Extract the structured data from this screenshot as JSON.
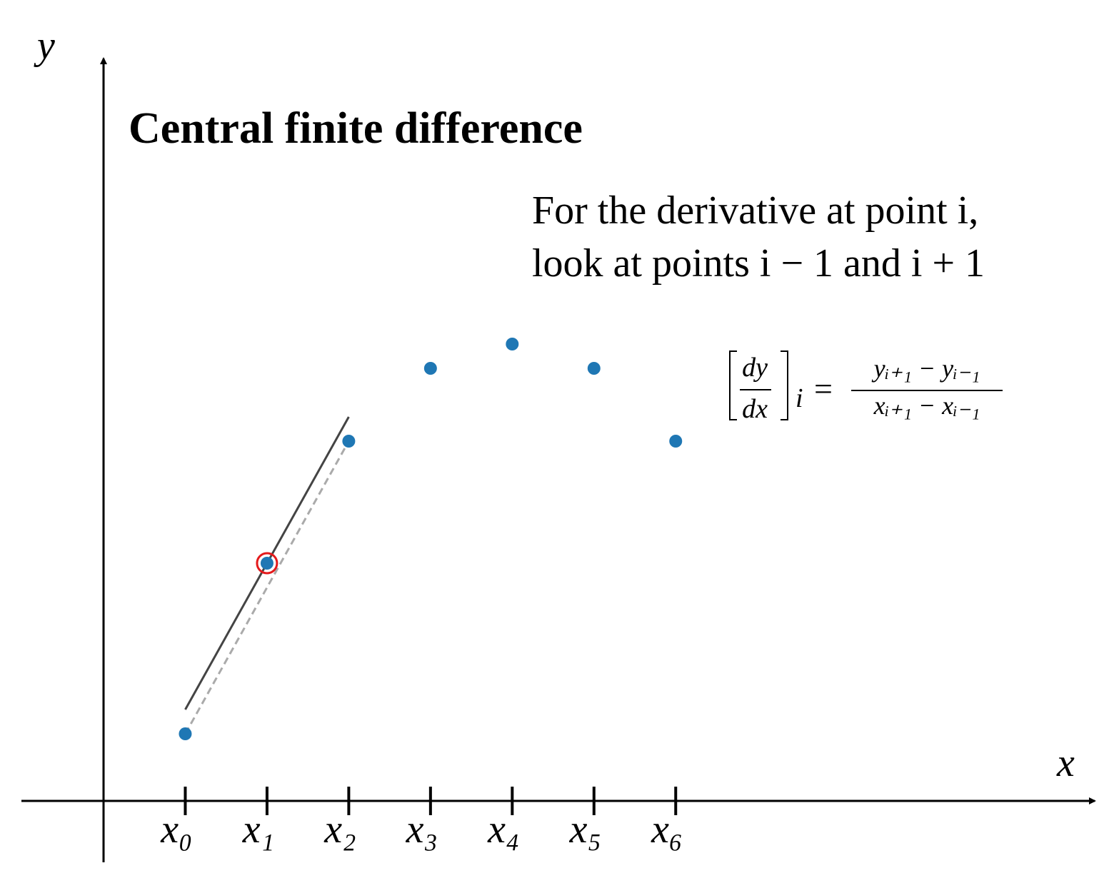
{
  "chart_data": {
    "type": "scatter",
    "title": "Central finite difference",
    "annotation": [
      "For the derivative at point i,",
      "look at points i − 1 and i + 1"
    ],
    "formula": {
      "num": "dy",
      "den": "dx",
      "sub": "i",
      "eq": "=",
      "rhs_num": "yᵢ₊₁ − yᵢ₋₁",
      "rhs_den": "xᵢ₊₁ − xᵢ₋₁"
    },
    "x_label": "x",
    "y_label": "y",
    "x": [
      0,
      1,
      2,
      3,
      4,
      5,
      6
    ],
    "values": [
      0.94,
      3.33,
      5.04,
      6.06,
      6.4,
      6.06,
      5.04
    ],
    "color": "#1f77b4",
    "highlight_index": 1,
    "highlight_color": "#e41a1c",
    "xlim": [
      -1,
      11.1
    ],
    "ylim": [
      0,
      10.37
    ],
    "xticks": [
      {
        "value": 0,
        "label": "x₀"
      },
      {
        "value": 1,
        "label": "x₁"
      },
      {
        "value": 2,
        "label": "x₂"
      },
      {
        "value": 3,
        "label": "x₃"
      },
      {
        "value": 4,
        "label": "x₄"
      },
      {
        "value": 5,
        "label": "x₅"
      },
      {
        "value": 6,
        "label": "x₆"
      }
    ]
  }
}
